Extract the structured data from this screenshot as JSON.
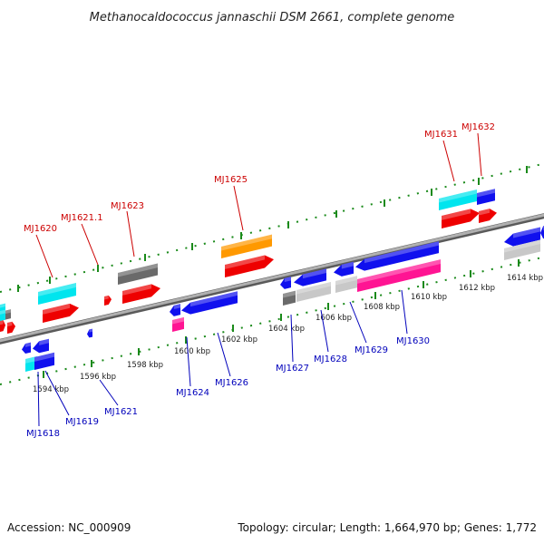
{
  "title": "Methanocaldococcus jannaschii DSM 2661, complete genome",
  "footer": {
    "accession": "Accession: NC_000909",
    "summary": "Topology: circular; Length: 1,664,970 bp; Genes: 1,772"
  },
  "colors": {
    "top_label": "#cc0000",
    "bottom_label": "#0000bb",
    "backbone": "#8a8a8a",
    "ticks": "#1a8a1a",
    "cyan": "#00e5ee",
    "red": "#ee0000",
    "blue": "#1010ee",
    "gray": "#6a6a6a",
    "light_gray": "#c8c8c8",
    "orange": "#ff9900",
    "pink": "#ff1493"
  },
  "scale": {
    "positions_kbp": [
      1594,
      1596,
      1598,
      1600,
      1602,
      1604,
      1606,
      1608,
      1610,
      1612,
      1614
    ],
    "labels": [
      "1594 kbp",
      "1596 kbp",
      "1598 kbp",
      "1600 kbp",
      "1602 kbp",
      "1604 kbp",
      "1606 kbp",
      "1608 kbp",
      "1610 kbp",
      "1612 kbp",
      "1614 kbp"
    ]
  },
  "top_genes": [
    {
      "name": "MJ1620"
    },
    {
      "name": "MJ1621.1"
    },
    {
      "name": "MJ1623"
    },
    {
      "name": "MJ1625"
    },
    {
      "name": "MJ1631"
    },
    {
      "name": "MJ1632"
    }
  ],
  "bottom_genes": [
    {
      "name": "MJ1618"
    },
    {
      "name": "MJ1619"
    },
    {
      "name": "MJ1621"
    },
    {
      "name": "MJ1624"
    },
    {
      "name": "MJ1626"
    },
    {
      "name": "MJ1627"
    },
    {
      "name": "MJ1628"
    },
    {
      "name": "MJ1629"
    },
    {
      "name": "MJ1630"
    }
  ]
}
